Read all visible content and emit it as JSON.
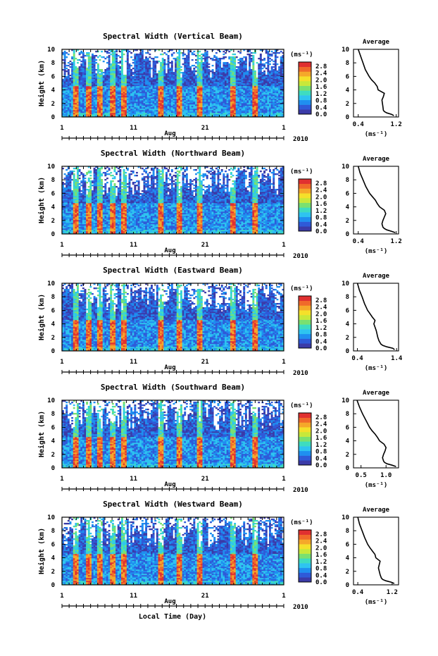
{
  "figure": {
    "shared_xlabel": "Local Time (Day)",
    "month_label": "Aug",
    "year_label": "2010",
    "height_label": "Height (km)",
    "unit_label": "(ms⁻¹)",
    "avg_title": "Average",
    "avg_xlabel": "(ms⁻¹)"
  },
  "colorbar": {
    "ticks": [
      "0.0",
      "0.4",
      "0.8",
      "1.2",
      "1.6",
      "2.0",
      "2.4",
      "2.8"
    ],
    "colors": [
      "#3b3ba8",
      "#2f5ad8",
      "#1f8ff0",
      "#2ec4f0",
      "#3edcc0",
      "#7ae070",
      "#c8e83a",
      "#f5e02a",
      "#f5a82a",
      "#f06a2a",
      "#e03030"
    ]
  },
  "chart_data": [
    {
      "type": "heatmap",
      "title": "Spectral Width (Vertical Beam)",
      "xlabel": "Aug",
      "ylabel": "Height (km)",
      "x_range": [
        1,
        32
      ],
      "x_ticks": [
        "1",
        "11",
        "21",
        "1"
      ],
      "y_range": [
        0,
        10
      ],
      "y_ticks": [
        "0",
        "2",
        "4",
        "6",
        "8",
        "10"
      ],
      "colorbar_label": "(ms⁻¹)",
      "colorbar_ticks": [
        "0.0",
        "0.4",
        "0.8",
        "1.2",
        "1.6",
        "2.0",
        "2.4",
        "2.8"
      ],
      "average": {
        "type": "line",
        "title": "Average",
        "xlabel": "(ms⁻¹)",
        "x_range": [
          0.3,
          1.25
        ],
        "x_ticks": [
          "0.4",
          "1.2"
        ],
        "y_ticks": [
          "0",
          "2",
          "4",
          "6",
          "8",
          "10"
        ],
        "height": [
          0.2,
          0.4,
          0.6,
          0.8,
          1.0,
          1.5,
          2.0,
          2.5,
          3.0,
          3.5,
          4.0,
          4.5,
          5.0,
          5.5,
          6.0,
          7.0,
          8.0,
          9.0,
          10.0
        ],
        "width": [
          1.15,
          1.1,
          1.0,
          0.95,
          0.93,
          0.92,
          0.91,
          0.9,
          0.93,
          0.95,
          0.82,
          0.8,
          0.75,
          0.68,
          0.63,
          0.55,
          0.5,
          0.45,
          0.4
        ]
      }
    },
    {
      "type": "heatmap",
      "title": "Spectral Width (Northward Beam)",
      "xlabel": "Aug",
      "ylabel": "Height (km)",
      "x_range": [
        1,
        32
      ],
      "x_ticks": [
        "1",
        "11",
        "21",
        "1"
      ],
      "y_range": [
        0,
        10
      ],
      "y_ticks": [
        "0",
        "2",
        "4",
        "6",
        "8",
        "10"
      ],
      "colorbar_label": "(ms⁻¹)",
      "colorbar_ticks": [
        "0.0",
        "0.4",
        "0.8",
        "1.2",
        "1.6",
        "2.0",
        "2.4",
        "2.8"
      ],
      "average": {
        "type": "line",
        "title": "Average",
        "xlabel": "(ms⁻¹)",
        "x_range": [
          0.3,
          1.25
        ],
        "x_ticks": [
          "0.4",
          "1.2"
        ],
        "y_ticks": [
          "0",
          "2",
          "4",
          "6",
          "8",
          "10"
        ],
        "height": [
          0.2,
          0.4,
          0.6,
          0.8,
          1.0,
          1.5,
          2.0,
          2.5,
          3.0,
          3.5,
          4.0,
          4.5,
          5.0,
          5.5,
          6.0,
          7.0,
          8.0,
          9.0,
          10.0
        ],
        "width": [
          1.18,
          1.1,
          1.0,
          0.95,
          0.92,
          0.9,
          0.92,
          0.95,
          0.98,
          0.95,
          0.85,
          0.8,
          0.76,
          0.7,
          0.64,
          0.56,
          0.5,
          0.44,
          0.4
        ]
      }
    },
    {
      "type": "heatmap",
      "title": "Spectral Width (Eastward Beam)",
      "xlabel": "Aug",
      "ylabel": "Height (km)",
      "x_range": [
        1,
        32
      ],
      "x_ticks": [
        "1",
        "11",
        "21",
        "1"
      ],
      "y_range": [
        0,
        10
      ],
      "y_ticks": [
        "0",
        "2",
        "4",
        "6",
        "8",
        "10"
      ],
      "colorbar_label": "(ms⁻¹)",
      "colorbar_ticks": [
        "0.0",
        "0.4",
        "0.8",
        "1.2",
        "1.6",
        "2.0",
        "2.4",
        "2.8"
      ],
      "average": {
        "type": "line",
        "title": "Average",
        "xlabel": "(ms⁻¹)",
        "x_range": [
          0.3,
          1.45
        ],
        "x_ticks": [
          "0.4",
          "1.4"
        ],
        "y_ticks": [
          "0",
          "2",
          "4",
          "6",
          "8",
          "10"
        ],
        "height": [
          0.2,
          0.4,
          0.6,
          0.8,
          1.0,
          1.5,
          2.0,
          2.5,
          3.0,
          3.5,
          4.0,
          4.5,
          5.0,
          5.5,
          6.0,
          7.0,
          8.0,
          9.0,
          10.0
        ],
        "width": [
          1.35,
          1.3,
          1.15,
          1.05,
          1.0,
          0.95,
          0.92,
          0.9,
          0.88,
          0.85,
          0.82,
          0.85,
          0.78,
          0.72,
          0.66,
          0.58,
          0.52,
          0.45,
          0.4
        ]
      }
    },
    {
      "type": "heatmap",
      "title": "Spectral Width (Southward Beam)",
      "xlabel": "Aug",
      "ylabel": "Height (km)",
      "x_range": [
        1,
        32
      ],
      "x_ticks": [
        "1",
        "11",
        "21",
        "1"
      ],
      "y_range": [
        0,
        10
      ],
      "y_ticks": [
        "0",
        "2",
        "4",
        "6",
        "8",
        "10"
      ],
      "colorbar_label": "(ms⁻¹)",
      "colorbar_ticks": [
        "0.0",
        "0.4",
        "0.8",
        "1.2",
        "1.6",
        "2.0",
        "2.4",
        "2.8"
      ],
      "average": {
        "type": "line",
        "title": "Average",
        "xlabel": "(ms⁻¹)",
        "x_range": [
          0.35,
          1.25
        ],
        "x_ticks": [
          "0.5",
          "1.0"
        ],
        "y_ticks": [
          "0",
          "2",
          "4",
          "6",
          "8",
          "10"
        ],
        "height": [
          0.2,
          0.4,
          0.6,
          0.8,
          1.0,
          1.5,
          2.0,
          2.5,
          3.0,
          3.5,
          4.0,
          4.5,
          5.0,
          5.5,
          6.0,
          7.0,
          8.0,
          9.0,
          10.0
        ],
        "width": [
          1.2,
          1.12,
          1.02,
          0.97,
          0.95,
          0.93,
          0.95,
          0.98,
          1.0,
          0.96,
          0.87,
          0.83,
          0.78,
          0.72,
          0.67,
          0.6,
          0.53,
          0.47,
          0.42
        ]
      }
    },
    {
      "type": "heatmap",
      "title": "Spectral Width (Westward Beam)",
      "xlabel": "Aug",
      "ylabel": "Height (km)",
      "x_range": [
        1,
        32
      ],
      "x_ticks": [
        "1",
        "11",
        "21",
        "1"
      ],
      "y_range": [
        0,
        10
      ],
      "y_ticks": [
        "0",
        "2",
        "4",
        "6",
        "8",
        "10"
      ],
      "colorbar_label": "(ms⁻¹)",
      "colorbar_ticks": [
        "0.0",
        "0.4",
        "0.8",
        "1.2",
        "1.6",
        "2.0",
        "2.4",
        "2.8"
      ],
      "average": {
        "type": "line",
        "title": "Average",
        "xlabel": "(ms⁻¹)",
        "x_range": [
          0.3,
          1.35
        ],
        "x_ticks": [
          "0.4",
          "1.2"
        ],
        "y_ticks": [
          "0",
          "2",
          "4",
          "6",
          "8",
          "10"
        ],
        "height": [
          0.2,
          0.4,
          0.6,
          0.8,
          1.0,
          1.5,
          2.0,
          2.5,
          3.0,
          3.5,
          4.0,
          4.5,
          5.0,
          5.5,
          6.0,
          7.0,
          8.0,
          9.0,
          10.0
        ],
        "width": [
          1.25,
          1.18,
          1.05,
          0.98,
          0.95,
          0.92,
          0.9,
          0.88,
          0.9,
          0.92,
          0.82,
          0.8,
          0.74,
          0.68,
          0.63,
          0.56,
          0.5,
          0.44,
          0.4
        ]
      }
    }
  ]
}
